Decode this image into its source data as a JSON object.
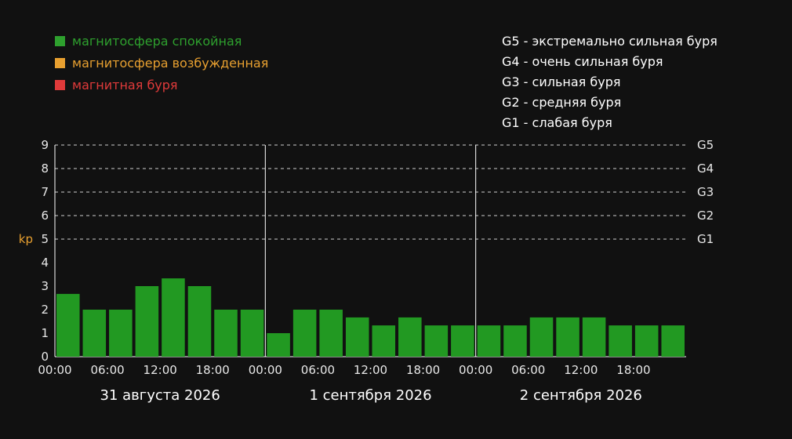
{
  "legend": [
    {
      "label": "магнитосфера спокойная",
      "color": "#2ea02e"
    },
    {
      "label": "магнитосфера возбужденная",
      "color": "#e8a030"
    },
    {
      "label": "магнитная буря",
      "color": "#e03a3a"
    }
  ],
  "storm_scale": [
    "G5 - экстремально сильная буря",
    "G4 - очень сильная буря",
    "G3 - сильная буря",
    "G2 - средняя буря",
    "G1 - слабая буря"
  ],
  "chart_data": {
    "type": "bar",
    "ylabel": "kp",
    "ylabel_color": "#e8a030",
    "ylim": [
      0,
      9
    ],
    "yticks": [
      "0",
      "1",
      "2",
      "3",
      "4",
      "5",
      "6",
      "7",
      "8",
      "9"
    ],
    "right_labels": [
      {
        "value": 5,
        "label": "G1"
      },
      {
        "value": 6,
        "label": "G2"
      },
      {
        "value": 7,
        "label": "G3"
      },
      {
        "value": 8,
        "label": "G4"
      },
      {
        "value": 9,
        "label": "G5"
      }
    ],
    "grid": "dashed horizontal lines at 5–9",
    "bar_color": "#229922",
    "days": [
      {
        "date": "31 августа 2026",
        "xticks": [
          "00:00",
          "06:00",
          "12:00",
          "18:00"
        ],
        "values": [
          2.67,
          2,
          2,
          3,
          3.33,
          3,
          2,
          2
        ]
      },
      {
        "date": "1 сентября 2026",
        "xticks": [
          "00:00",
          "06:00",
          "12:00",
          "18:00"
        ],
        "values": [
          1,
          2,
          2,
          1.67,
          1.33,
          1.67,
          1.33,
          1.33
        ]
      },
      {
        "date": "2 сентября 2026",
        "xticks": [
          "00:00",
          "06:00",
          "12:00",
          "18:00"
        ],
        "values": [
          1.33,
          1.33,
          1.67,
          1.67,
          1.67,
          1.33,
          1.33,
          1.33
        ]
      }
    ]
  }
}
